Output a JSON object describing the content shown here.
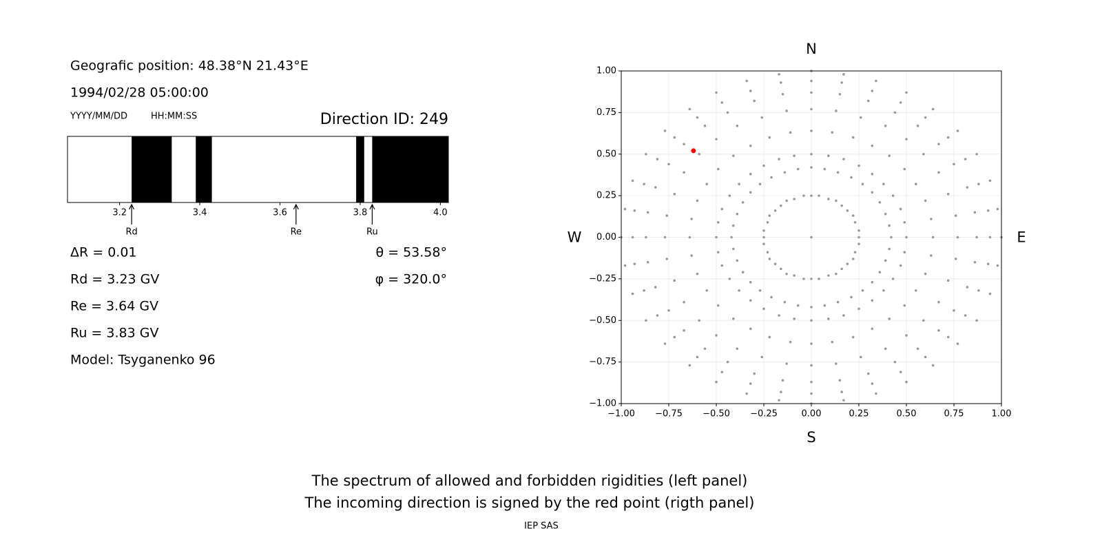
{
  "header": {
    "position": "Geografic position: 48.38°N 21.43°E",
    "datetime": "1994/02/28 05:00:00",
    "date_format": "YYYY/MM/DD",
    "time_format": "HH:MM:SS",
    "direction_id": "Direction ID: 249"
  },
  "parameters": {
    "delta_r": "ΔR = 0.01",
    "rd": "Rd = 3.23 GV",
    "re": "Re = 3.64 GV",
    "ru": "Ru = 3.83 GV",
    "model": "Model: Tsyganenko 96",
    "theta": "θ = 53.58°",
    "phi": "φ = 320.0°"
  },
  "chart_data": [
    {
      "type": "spectrum",
      "xlim": [
        3.07,
        4.02
      ],
      "xticks": [
        3.2,
        3.4,
        3.6,
        3.8,
        {
          "value": 4.0,
          "label": "4.0"
        }
      ],
      "bands": [
        [
          3.23,
          3.33
        ],
        [
          3.39,
          3.43
        ],
        [
          3.79,
          3.81
        ],
        [
          3.83,
          4.02
        ]
      ],
      "color": "#000000",
      "markers": [
        {
          "label": "Rd",
          "value": 3.23
        },
        {
          "label": "Re",
          "value": 3.64
        },
        {
          "label": "Ru",
          "value": 3.83
        }
      ]
    },
    {
      "type": "scatter",
      "xlim": [
        -1,
        1
      ],
      "ylim": [
        -1,
        1
      ],
      "xticks": [
        {
          "value": -1,
          "label": "−1.00"
        },
        {
          "value": -0.75,
          "label": "−0.75"
        },
        {
          "value": -0.5,
          "label": "−0.50"
        },
        {
          "value": -0.25,
          "label": "−0.25"
        },
        {
          "value": 0,
          "label": "0.00"
        },
        {
          "value": 0.25,
          "label": "0.25"
        },
        {
          "value": 0.5,
          "label": "0.50"
        },
        {
          "value": 0.75,
          "label": "0.75"
        },
        {
          "value": 1,
          "label": "1.00"
        }
      ],
      "yticks": [
        {
          "value": -1,
          "label": "−1.00"
        },
        {
          "value": -0.75,
          "label": "−0.75"
        },
        {
          "value": -0.5,
          "label": "−0.50"
        },
        {
          "value": -0.25,
          "label": "−0.25"
        },
        {
          "value": 0,
          "label": "0.00"
        },
        {
          "value": 0.25,
          "label": "0.25"
        },
        {
          "value": 0.5,
          "label": "0.50"
        },
        {
          "value": 0.75,
          "label": "0.75"
        },
        {
          "value": 1,
          "label": "1.00"
        }
      ],
      "grid": true,
      "directions": {
        "north": "N",
        "south": "S",
        "west": "W",
        "east": "E"
      },
      "series": [
        {
          "color": "#999999",
          "x": [
            0
          ],
          "y": [
            0
          ]
        },
        {
          "color": "#999999",
          "x": [
            0.25,
            0.25,
            0.23,
            0.22,
            0.19,
            0.16,
            0.13,
            0.09,
            0.04,
            0,
            -0.04,
            -0.09,
            -0.13,
            -0.16,
            -0.19,
            -0.22,
            -0.23,
            -0.25,
            -0.25,
            -0.25,
            -0.23,
            -0.22,
            -0.19,
            -0.16,
            -0.13,
            -0.09,
            -0.04,
            0,
            0.04,
            0.09,
            0.13,
            0.16,
            0.19,
            0.22,
            0.23,
            0.25
          ],
          "y": [
            0,
            0.04,
            0.09,
            0.13,
            0.16,
            0.19,
            0.22,
            0.23,
            0.25,
            0.25,
            0.25,
            0.23,
            0.22,
            0.19,
            0.16,
            0.13,
            0.09,
            0.04,
            0,
            -0.04,
            -0.09,
            -0.13,
            -0.16,
            -0.19,
            -0.22,
            -0.23,
            -0.25,
            -0.25,
            -0.25,
            -0.23,
            -0.22,
            -0.19,
            -0.16,
            -0.13,
            -0.09,
            -0.04
          ]
        },
        {
          "color": "#999999",
          "x": [
            0.42,
            0.41,
            0.39,
            0.36,
            0.32,
            0.27,
            0.21,
            0.14,
            0.07,
            0,
            -0.07,
            -0.14,
            -0.21,
            -0.27,
            -0.32,
            -0.36,
            -0.39,
            -0.41,
            -0.42,
            -0.41,
            -0.39,
            -0.36,
            -0.32,
            -0.27,
            -0.21,
            -0.14,
            -0.07,
            0,
            0.07,
            0.14,
            0.21,
            0.27,
            0.32,
            0.36,
            0.39,
            0.41
          ],
          "y": [
            0,
            0.07,
            0.14,
            0.21,
            0.27,
            0.32,
            0.36,
            0.39,
            0.41,
            0.42,
            0.41,
            0.39,
            0.36,
            0.32,
            0.27,
            0.21,
            0.14,
            0.07,
            0,
            -0.07,
            -0.14,
            -0.21,
            -0.27,
            -0.32,
            -0.36,
            -0.39,
            -0.41,
            -0.42,
            -0.41,
            -0.39,
            -0.36,
            -0.32,
            -0.27,
            -0.21,
            -0.14,
            -0.07
          ]
        },
        {
          "color": "#999999",
          "x": [
            0.5,
            0.49,
            0.47,
            0.43,
            0.38,
            0.32,
            0.25,
            0.17,
            0.09,
            0,
            -0.09,
            -0.17,
            -0.25,
            -0.32,
            -0.38,
            -0.43,
            -0.47,
            -0.49,
            -0.5,
            -0.49,
            -0.47,
            -0.43,
            -0.38,
            -0.32,
            -0.25,
            -0.17,
            -0.09,
            0,
            0.09,
            0.17,
            0.25,
            0.32,
            0.38,
            0.43,
            0.47,
            0.49
          ],
          "y": [
            0,
            0.09,
            0.17,
            0.25,
            0.32,
            0.38,
            0.43,
            0.47,
            0.49,
            0.5,
            0.49,
            0.47,
            0.43,
            0.38,
            0.32,
            0.25,
            0.17,
            0.09,
            0,
            -0.09,
            -0.17,
            -0.25,
            -0.32,
            -0.38,
            -0.43,
            -0.47,
            -0.49,
            -0.5,
            -0.49,
            -0.47,
            -0.43,
            -0.38,
            -0.32,
            -0.25,
            -0.17,
            -0.09
          ]
        },
        {
          "color": "#999999",
          "x": [
            0.64,
            0.63,
            0.6,
            0.55,
            0.49,
            0.41,
            0.32,
            0.22,
            0.11,
            0,
            -0.11,
            -0.22,
            -0.32,
            -0.41,
            -0.49,
            -0.55,
            -0.6,
            -0.63,
            -0.64,
            -0.63,
            -0.6,
            -0.55,
            -0.49,
            -0.41,
            -0.32,
            -0.22,
            -0.11,
            0,
            0.11,
            0.22,
            0.32,
            0.41,
            0.49,
            0.55,
            0.6,
            0.63
          ],
          "y": [
            0,
            0.11,
            0.22,
            0.32,
            0.41,
            0.49,
            0.55,
            0.6,
            0.63,
            0.64,
            0.63,
            0.6,
            0.55,
            0.49,
            0.41,
            0.32,
            0.22,
            0.11,
            0,
            -0.11,
            -0.22,
            -0.32,
            -0.41,
            -0.49,
            -0.55,
            -0.6,
            -0.63,
            -0.64,
            -0.63,
            -0.6,
            -0.55,
            -0.49,
            -0.41,
            -0.32,
            -0.22,
            -0.11
          ]
        },
        {
          "color": "#999999",
          "x": [
            0.77,
            0.76,
            0.72,
            0.67,
            0.59,
            0.5,
            0.39,
            0.26,
            0.13,
            0,
            -0.13,
            -0.26,
            -0.39,
            -0.5,
            -0.59,
            -0.67,
            -0.72,
            -0.76,
            -0.77,
            -0.76,
            -0.72,
            -0.67,
            -0.59,
            -0.5,
            -0.39,
            -0.26,
            -0.13,
            0,
            0.13,
            0.26,
            0.39,
            0.5,
            0.59,
            0.67,
            0.72,
            0.76
          ],
          "y": [
            0,
            0.13,
            0.26,
            0.39,
            0.5,
            0.59,
            0.67,
            0.72,
            0.76,
            0.77,
            0.76,
            0.72,
            0.67,
            0.59,
            0.5,
            0.39,
            0.26,
            0.13,
            0,
            -0.13,
            -0.26,
            -0.39,
            -0.5,
            -0.59,
            -0.67,
            -0.72,
            -0.76,
            -0.77,
            -0.76,
            -0.72,
            -0.67,
            -0.59,
            -0.5,
            -0.39,
            -0.26,
            -0.13
          ]
        },
        {
          "color": "#999999",
          "x": [
            0.87,
            0.86,
            0.82,
            0.75,
            0.67,
            0.56,
            0.44,
            0.3,
            0.15,
            0,
            -0.15,
            -0.3,
            -0.44,
            -0.56,
            -0.67,
            -0.75,
            -0.82,
            -0.86,
            -0.87,
            -0.86,
            -0.82,
            -0.75,
            -0.67,
            -0.56,
            -0.44,
            -0.3,
            -0.15,
            0,
            0.15,
            0.3,
            0.44,
            0.56,
            0.67,
            0.75,
            0.82,
            0.86
          ],
          "y": [
            0,
            0.15,
            0.3,
            0.44,
            0.56,
            0.67,
            0.75,
            0.82,
            0.86,
            0.87,
            0.86,
            0.82,
            0.75,
            0.67,
            0.56,
            0.44,
            0.3,
            0.15,
            0,
            -0.15,
            -0.3,
            -0.44,
            -0.56,
            -0.67,
            -0.75,
            -0.82,
            -0.86,
            -0.87,
            -0.86,
            -0.82,
            -0.75,
            -0.67,
            -0.56,
            -0.44,
            -0.3,
            -0.15
          ]
        },
        {
          "color": "#999999",
          "x": [
            0.94,
            0.93,
            0.88,
            0.81,
            0.72,
            0.6,
            0.47,
            0.32,
            0.16,
            0,
            -0.16,
            -0.32,
            -0.47,
            -0.6,
            -0.72,
            -0.81,
            -0.88,
            -0.93,
            -0.94,
            -0.93,
            -0.88,
            -0.81,
            -0.72,
            -0.6,
            -0.47,
            -0.32,
            -0.16,
            0,
            0.16,
            0.32,
            0.47,
            0.6,
            0.72,
            0.81,
            0.88,
            0.93
          ],
          "y": [
            0,
            0.16,
            0.32,
            0.47,
            0.6,
            0.72,
            0.81,
            0.88,
            0.93,
            0.94,
            0.93,
            0.88,
            0.81,
            0.72,
            0.6,
            0.47,
            0.32,
            0.16,
            0,
            -0.16,
            -0.32,
            -0.47,
            -0.6,
            -0.72,
            -0.81,
            -0.88,
            -0.93,
            -0.94,
            -0.93,
            -0.88,
            -0.81,
            -0.72,
            -0.6,
            -0.47,
            -0.32,
            -0.16
          ]
        },
        {
          "color": "#999999",
          "x": [
            1,
            0.98,
            0.94,
            0.87,
            0.77,
            0.64,
            0.5,
            0.34,
            0.17,
            0,
            -0.17,
            -0.34,
            -0.5,
            -0.64,
            -0.77,
            -0.87,
            -0.94,
            -0.98,
            -1,
            -0.98,
            -0.94,
            -0.87,
            -0.77,
            -0.64,
            -0.5,
            -0.34,
            -0.17,
            0,
            0.17,
            0.34,
            0.5,
            0.64,
            0.77,
            0.87,
            0.94,
            0.98
          ],
          "y": [
            0,
            0.17,
            0.34,
            0.5,
            0.64,
            0.77,
            0.87,
            0.94,
            0.98,
            1,
            0.98,
            0.94,
            0.87,
            0.77,
            0.64,
            0.5,
            0.34,
            0.17,
            0,
            -0.17,
            -0.34,
            -0.5,
            -0.64,
            -0.77,
            -0.87,
            -0.94,
            -0.98,
            -1,
            -0.98,
            -0.94,
            -0.87,
            -0.77,
            -0.64,
            -0.5,
            -0.34,
            -0.17
          ]
        },
        {
          "color": "#ff0000",
          "x": [
            -0.62
          ],
          "y": [
            0.52
          ]
        }
      ]
    }
  ],
  "footer": {
    "caption_1": "The spectrum of allowed and forbidden rigidities (left panel)",
    "caption_2": "The incoming direction is signed by the red point (rigth panel)",
    "credit": "IEP SAS"
  }
}
